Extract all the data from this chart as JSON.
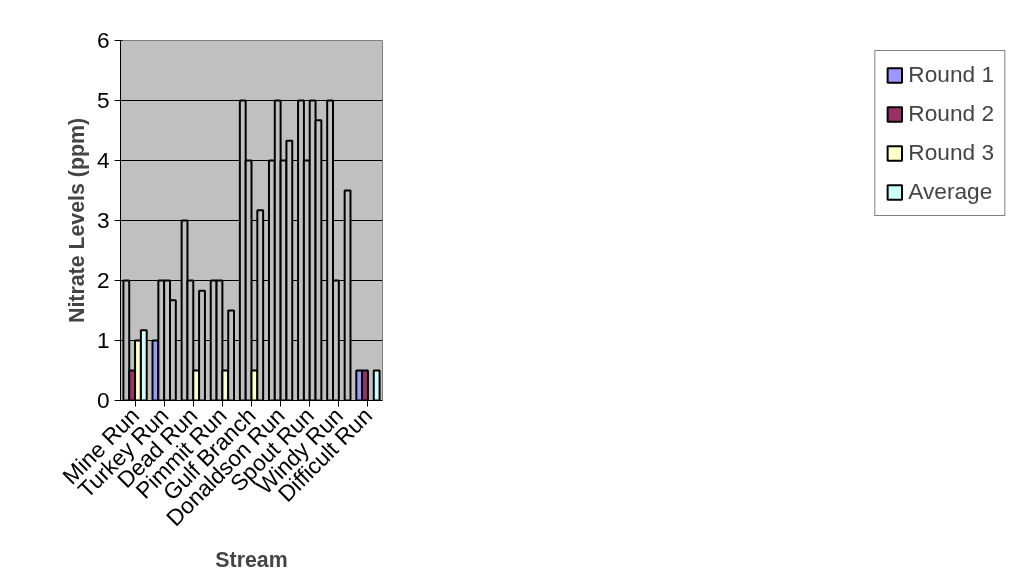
{
  "chart_data": {
    "type": "bar",
    "xlabel": "Stream",
    "ylabel": "Nitrate Levels (ppm)",
    "categories": [
      "Mine Run",
      "Turkey Run",
      "Dead Run",
      "Pimmit Run",
      "Gulf Branch",
      "Donaldson Run",
      "Spout Run",
      "Windy Run",
      "Difficult Run"
    ],
    "series": [
      {
        "name": "Round 1",
        "color": "#9999ff",
        "colors": [
          "#c0c0c0",
          "#9999ff",
          "#c0c0c0",
          "#c0c0c0",
          "#c0c0c0",
          "#c0c0c0",
          "#c0c0c0",
          "#c0c0c0",
          "#9999ff"
        ],
        "values": [
          2,
          1,
          3,
          2,
          5,
          4,
          5,
          5,
          0.5
        ]
      },
      {
        "name": "Round 2",
        "color": "#993366",
        "colors": [
          "#993366",
          "#c0c0c0",
          "#c0c0c0",
          "#c0c0c0",
          "#c0c0c0",
          "#c0c0c0",
          "#c0c0c0",
          "#c0c0c0",
          "#993366"
        ],
        "values": [
          0.5,
          2,
          2,
          2,
          4,
          5,
          4,
          2,
          0.5
        ]
      },
      {
        "name": "Round 3",
        "color": "#ffffcc",
        "colors": [
          "#ffffcc",
          "#c0c0c0",
          "#ffffcc",
          "#ffffcc",
          "#ffffcc",
          "#c0c0c0",
          "#c0c0c0",
          "#c0c0c0",
          "#c0c0c0"
        ],
        "values": [
          1,
          2,
          0.5,
          0.5,
          0.5,
          4,
          5,
          null,
          null
        ]
      },
      {
        "name": "Average",
        "color": "#ccffff",
        "colors": [
          "#ccffff",
          "#c0c0c0",
          "#c0c0c0",
          "#c0c0c0",
          "#c0c0c0",
          "#c0c0c0",
          "#c0c0c0",
          "#c0c0c0",
          "#ccffff"
        ],
        "values": [
          1.17,
          1.67,
          1.83,
          1.5,
          3.17,
          4.33,
          4.67,
          3.5,
          0.5
        ]
      }
    ],
    "ylim": [
      0,
      6
    ],
    "yticks": [
      0,
      1,
      2,
      3,
      4,
      5,
      6
    ],
    "grid": "y",
    "legend": "right"
  }
}
